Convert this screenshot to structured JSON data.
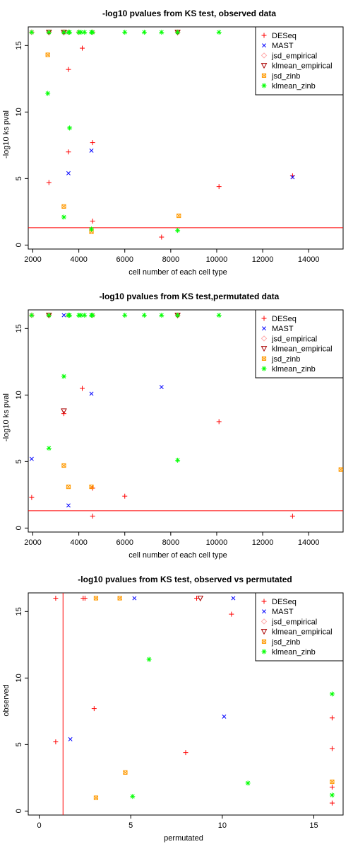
{
  "chart_data": [
    {
      "type": "scatter",
      "title": "-log10 pvalues from KS test, observed data",
      "xlabel": "cell number of each cell type",
      "ylabel": "-log10 ks pval",
      "xlim": [
        1800,
        15500
      ],
      "ylim": [
        -0.3,
        16.4
      ],
      "xticks": [
        2000,
        4000,
        6000,
        8000,
        10000,
        12000,
        14000
      ],
      "yticks": [
        0,
        5,
        10,
        15
      ],
      "legend_position": "top-right",
      "reference_line": {
        "orientation": "horizontal",
        "value": 1.3,
        "color": "#ff0000"
      },
      "series": [
        {
          "name": "DESeq",
          "marker": "plus",
          "color": "#ff0000",
          "x": [
            2700,
            3550,
            3550,
            4150,
            4600,
            4600,
            7600,
            10100,
            13300,
            3350,
            8300
          ],
          "y": [
            4.7,
            13.2,
            7.0,
            14.8,
            7.7,
            1.8,
            0.6,
            4.4,
            5.2,
            16,
            16
          ]
        },
        {
          "name": "MAST",
          "marker": "x",
          "color": "#0000ff",
          "x": [
            3550,
            4550,
            13300,
            3350
          ],
          "y": [
            5.4,
            7.1,
            5.1,
            16
          ]
        },
        {
          "name": "jsd_empirical",
          "marker": "diamond",
          "color": "#ffaaaa",
          "x": [
            1950,
            2700,
            3350,
            3550,
            4000,
            4600,
            8300
          ],
          "y": [
            16,
            16,
            16,
            16,
            16,
            16,
            16
          ]
        },
        {
          "name": "klmean_empirical",
          "marker": "triangle-down",
          "color": "#aa0000",
          "x": [
            2700,
            3350,
            8300
          ],
          "y": [
            16,
            16,
            16
          ]
        },
        {
          "name": "jsd_zinb",
          "marker": "boxed-x",
          "color": "#ff9900",
          "x": [
            2650,
            3350,
            4550,
            8350
          ],
          "y": [
            14.3,
            2.9,
            1.0,
            2.2
          ]
        },
        {
          "name": "klmean_zinb",
          "marker": "asterisk",
          "color": "#00ff00",
          "x": [
            1950,
            2700,
            3350,
            3550,
            3600,
            4000,
            4100,
            4250,
            4550,
            4600,
            6000,
            6850,
            7600,
            8300,
            10100,
            2650,
            3600,
            3350,
            4550,
            8300
          ],
          "y": [
            16,
            16,
            16,
            16,
            16,
            16,
            16,
            16,
            16,
            16,
            16,
            16,
            16,
            16,
            16,
            11.4,
            8.8,
            2.1,
            1.2,
            1.1
          ]
        }
      ]
    },
    {
      "type": "scatter",
      "title": "-log10 pvalues from KS test,permutated data",
      "xlabel": "cell number of each cell type",
      "ylabel": "-log10 ks pval",
      "xlim": [
        1800,
        15500
      ],
      "ylim": [
        -0.3,
        16.4
      ],
      "xticks": [
        2000,
        4000,
        6000,
        8000,
        10000,
        12000,
        14000
      ],
      "yticks": [
        0,
        5,
        10,
        15
      ],
      "legend_position": "top-right",
      "reference_line": {
        "orientation": "horizontal",
        "value": 1.3,
        "color": "#ff0000"
      },
      "series": [
        {
          "name": "DESeq",
          "marker": "plus",
          "color": "#ff0000",
          "x": [
            1950,
            3350,
            4150,
            4600,
            4600,
            6000,
            10100,
            13300
          ],
          "y": [
            2.3,
            8.6,
            10.5,
            3.0,
            0.9,
            2.4,
            8.0,
            0.9
          ]
        },
        {
          "name": "MAST",
          "marker": "x",
          "color": "#0000ff",
          "x": [
            1950,
            3350,
            3550,
            4550,
            7600
          ],
          "y": [
            5.2,
            16,
            1.7,
            10.1,
            10.6
          ]
        },
        {
          "name": "jsd_empirical",
          "marker": "diamond",
          "color": "#ffaaaa",
          "x": [
            1950,
            2700,
            3550,
            4600,
            8300
          ],
          "y": [
            16,
            16,
            16,
            16,
            16
          ]
        },
        {
          "name": "klmean_empirical",
          "marker": "triangle-down",
          "color": "#aa0000",
          "x": [
            3350,
            2700,
            8300
          ],
          "y": [
            8.8,
            16,
            16
          ]
        },
        {
          "name": "jsd_zinb",
          "marker": "boxed-x",
          "color": "#ff9900",
          "x": [
            3350,
            3550,
            4550,
            15400
          ],
          "y": [
            4.7,
            3.1,
            3.1,
            4.4
          ]
        },
        {
          "name": "klmean_zinb",
          "marker": "asterisk",
          "color": "#00ff00",
          "x": [
            1950,
            2700,
            3550,
            3600,
            4000,
            4100,
            4250,
            4550,
            4600,
            6000,
            6850,
            7600,
            8300,
            10100,
            3350,
            2700,
            8300
          ],
          "y": [
            16,
            16,
            16,
            16,
            16,
            16,
            16,
            16,
            16,
            16,
            16,
            16,
            16,
            16,
            11.4,
            6.0,
            5.1
          ]
        }
      ]
    },
    {
      "type": "scatter",
      "title": "-log10 pvalues from KS test, observed vs permutated",
      "xlabel": "permutated",
      "ylabel": "observed",
      "xlim": [
        -0.6,
        16.6
      ],
      "ylim": [
        -0.3,
        16.4
      ],
      "xticks": [
        0,
        5,
        10,
        15
      ],
      "yticks": [
        0,
        5,
        10,
        15
      ],
      "legend_position": "top-right",
      "reference_line": {
        "orientation": "vertical",
        "value": 1.3,
        "color": "#ff0000"
      },
      "series": [
        {
          "name": "DESeq",
          "marker": "plus",
          "color": "#ff0000",
          "x": [
            0.9,
            0.9,
            2.4,
            2.5,
            3.0,
            8.0,
            8.6,
            10.5,
            16,
            16,
            16,
            16
          ],
          "y": [
            5.2,
            16,
            16,
            16,
            7.7,
            4.4,
            16,
            14.8,
            7.0,
            4.7,
            1.8,
            0.6
          ]
        },
        {
          "name": "MAST",
          "marker": "x",
          "color": "#0000ff",
          "x": [
            1.7,
            5.2,
            10.1,
            10.6
          ],
          "y": [
            5.4,
            16,
            7.1,
            16
          ]
        },
        {
          "name": "jsd_empirical",
          "marker": "diamond",
          "color": "#ffaaaa",
          "x": [],
          "y": []
        },
        {
          "name": "klmean_empirical",
          "marker": "triangle-down",
          "color": "#aa0000",
          "x": [
            8.8
          ],
          "y": [
            16
          ]
        },
        {
          "name": "jsd_zinb",
          "marker": "boxed-x",
          "color": "#ff9900",
          "x": [
            3.1,
            4.4,
            3.1,
            4.7,
            16
          ],
          "y": [
            16,
            16,
            1.0,
            2.9,
            2.2
          ]
        },
        {
          "name": "klmean_zinb",
          "marker": "asterisk",
          "color": "#00ff00",
          "x": [
            6.0,
            5.1,
            11.4,
            16,
            16
          ],
          "y": [
            11.4,
            1.1,
            2.1,
            8.8,
            1.2
          ]
        }
      ]
    }
  ]
}
